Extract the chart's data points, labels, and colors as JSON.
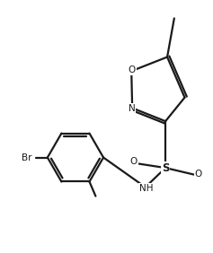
{
  "bg_color": "#ffffff",
  "line_color": "#1a1a1a",
  "line_width": 1.6,
  "fig_width": 2.37,
  "fig_height": 2.82,
  "dpi": 100,
  "xlim": [
    0,
    10
  ],
  "ylim": [
    0,
    12
  ]
}
